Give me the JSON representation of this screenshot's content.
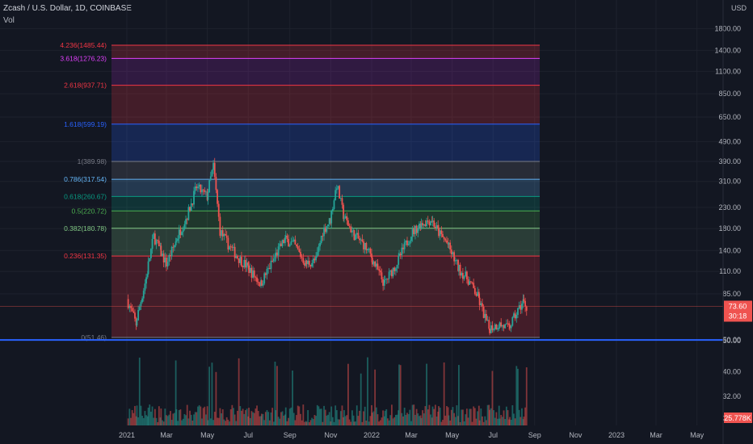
{
  "header": {
    "symbol": "Zcash / U.S. Dollar, 1D, COINBASE",
    "volume_label": "Vol",
    "currency": "USD"
  },
  "chart_data": {
    "type": "candlestick",
    "price_axis": {
      "scale": "log",
      "ticks": [
        1800,
        1400,
        1100,
        850,
        650,
        490,
        390,
        310,
        230,
        180,
        140,
        110,
        85,
        50
      ]
    },
    "volume_axis": {
      "ticks": [
        50,
        40,
        32,
        25
      ]
    },
    "time_axis": [
      "2021",
      "Mar",
      "May",
      "Jul",
      "Sep",
      "Nov",
      "2022",
      "Mar",
      "May",
      "Jul",
      "Sep",
      "Nov",
      "2023",
      "Mar",
      "May"
    ],
    "fib_levels": [
      {
        "label": "4.236(1485.44)",
        "ratio": 4.236,
        "price": 1485.44,
        "color": "#f23645"
      },
      {
        "label": "3.618(1276.23)",
        "ratio": 3.618,
        "price": 1276.23,
        "color": "#e040fb"
      },
      {
        "label": "2.618(937.71)",
        "ratio": 2.618,
        "price": 937.71,
        "color": "#f23645"
      },
      {
        "label": "1.618(599.19)",
        "ratio": 1.618,
        "price": 599.19,
        "color": "#2962ff"
      },
      {
        "label": "1(389.98)",
        "ratio": 1,
        "price": 389.98,
        "color": "#787b86"
      },
      {
        "label": "0.786(317.54)",
        "ratio": 0.786,
        "price": 317.54,
        "color": "#64b5f6"
      },
      {
        "label": "0.618(260.67)",
        "ratio": 0.618,
        "price": 260.67,
        "color": "#089981"
      },
      {
        "label": "0.5(220.72)",
        "ratio": 0.5,
        "price": 220.72,
        "color": "#4caf50"
      },
      {
        "label": "0.382(180.78)",
        "ratio": 0.382,
        "price": 180.78,
        "color": "#81c784"
      },
      {
        "label": "0.236(131.35)",
        "ratio": 0.236,
        "price": 131.35,
        "color": "#f23645"
      },
      {
        "label": "0(51.46)",
        "ratio": 0,
        "price": 51.46,
        "color": "#787b86"
      }
    ],
    "horizontal_line": {
      "price": 50,
      "color": "#2962ff"
    },
    "last_price": {
      "price_label": "73.60",
      "countdown": "30:18",
      "volume_label": "25.778K"
    },
    "price_series": [
      {
        "date": "2021-01-01",
        "close": 80
      },
      {
        "date": "2021-01-15",
        "close": 60
      },
      {
        "date": "2021-02-01",
        "close": 110
      },
      {
        "date": "2021-02-10",
        "close": 165
      },
      {
        "date": "2021-02-20",
        "close": 140
      },
      {
        "date": "2021-03-01",
        "close": 120
      },
      {
        "date": "2021-03-15",
        "close": 155
      },
      {
        "date": "2021-04-01",
        "close": 210
      },
      {
        "date": "2021-04-15",
        "close": 290
      },
      {
        "date": "2021-05-01",
        "close": 260
      },
      {
        "date": "2021-05-10",
        "close": 370
      },
      {
        "date": "2021-05-20",
        "close": 175
      },
      {
        "date": "2021-06-01",
        "close": 150
      },
      {
        "date": "2021-06-15",
        "close": 130
      },
      {
        "date": "2021-07-01",
        "close": 115
      },
      {
        "date": "2021-07-20",
        "close": 95
      },
      {
        "date": "2021-08-10",
        "close": 130
      },
      {
        "date": "2021-08-25",
        "close": 160
      },
      {
        "date": "2021-09-07",
        "close": 150
      },
      {
        "date": "2021-09-25",
        "close": 120
      },
      {
        "date": "2021-10-10",
        "close": 125
      },
      {
        "date": "2021-10-20",
        "close": 175
      },
      {
        "date": "2021-11-01",
        "close": 200
      },
      {
        "date": "2021-11-10",
        "close": 300
      },
      {
        "date": "2021-11-20",
        "close": 210
      },
      {
        "date": "2021-12-05",
        "close": 170
      },
      {
        "date": "2021-12-20",
        "close": 150
      },
      {
        "date": "2022-01-01",
        "close": 130
      },
      {
        "date": "2022-01-20",
        "close": 95
      },
      {
        "date": "2022-02-10",
        "close": 125
      },
      {
        "date": "2022-03-01",
        "close": 170
      },
      {
        "date": "2022-03-15",
        "close": 190
      },
      {
        "date": "2022-04-01",
        "close": 200
      },
      {
        "date": "2022-04-10",
        "close": 175
      },
      {
        "date": "2022-04-25",
        "close": 150
      },
      {
        "date": "2022-05-10",
        "close": 115
      },
      {
        "date": "2022-05-25",
        "close": 100
      },
      {
        "date": "2022-06-10",
        "close": 80
      },
      {
        "date": "2022-06-25",
        "close": 57
      },
      {
        "date": "2022-07-10",
        "close": 60
      },
      {
        "date": "2022-07-25",
        "close": 57
      },
      {
        "date": "2022-08-05",
        "close": 68
      },
      {
        "date": "2022-08-15",
        "close": 78
      },
      {
        "date": "2022-08-20",
        "close": 73.6
      }
    ]
  }
}
